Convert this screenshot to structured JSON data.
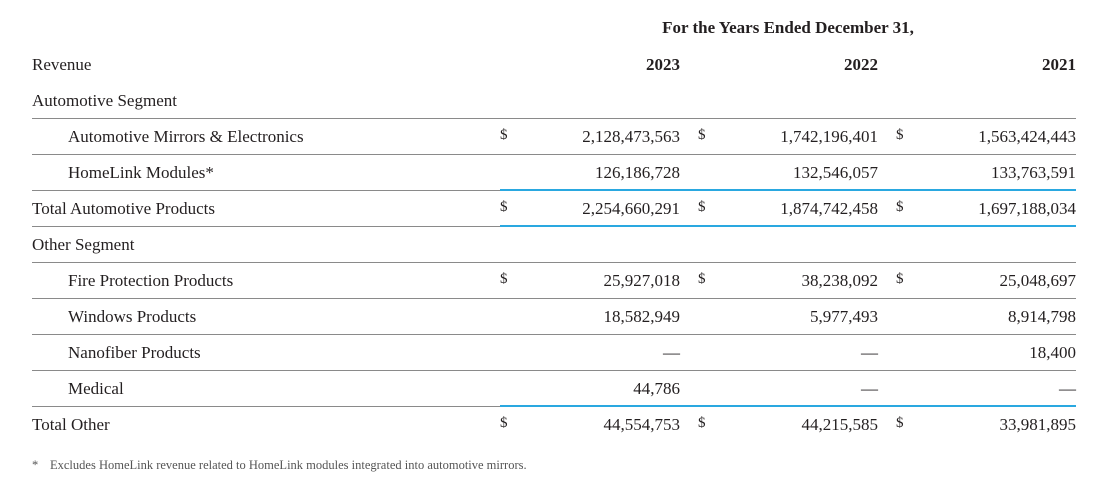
{
  "header": {
    "period": "For the Years Ended December 31,",
    "revenue_label": "Revenue",
    "years": [
      "2023",
      "2022",
      "2021"
    ]
  },
  "rows": [
    {
      "label": "Automotive Segment"
    },
    {
      "label": "Automotive Mirrors & Electronics",
      "dollar": "$",
      "values": [
        "2,128,473,563",
        "1,742,196,401",
        "1,563,424,443"
      ]
    },
    {
      "label": "HomeLink Modules*",
      "values": [
        "126,186,728",
        "132,546,057",
        "133,763,591"
      ]
    },
    {
      "label": "Total Automotive Products",
      "dollar": "$",
      "values": [
        "2,254,660,291",
        "1,874,742,458",
        "1,697,188,034"
      ]
    },
    {
      "label": "Other Segment"
    },
    {
      "label": "Fire Protection Products",
      "dollar": "$",
      "values": [
        "25,927,018",
        "38,238,092",
        "25,048,697"
      ]
    },
    {
      "label": "Windows Products",
      "values": [
        "18,582,949",
        "5,977,493",
        "8,914,798"
      ]
    },
    {
      "label": "Nanofiber Products",
      "values": [
        "—",
        "—",
        "18,400"
      ]
    },
    {
      "label": "Medical",
      "values": [
        "44,786",
        "—",
        "—"
      ]
    },
    {
      "label": "Total Other",
      "dollar": "$",
      "values": [
        "44,554,753",
        "44,215,585",
        "33,981,895"
      ]
    }
  ],
  "footnote": {
    "mark": "*",
    "text": "Excludes HomeLink revenue related to HomeLink modules integrated into automotive mirrors."
  },
  "colors": {
    "accent_rule": "#2aa8e0",
    "divider": "#8a8a8a",
    "text": "#231f20"
  }
}
